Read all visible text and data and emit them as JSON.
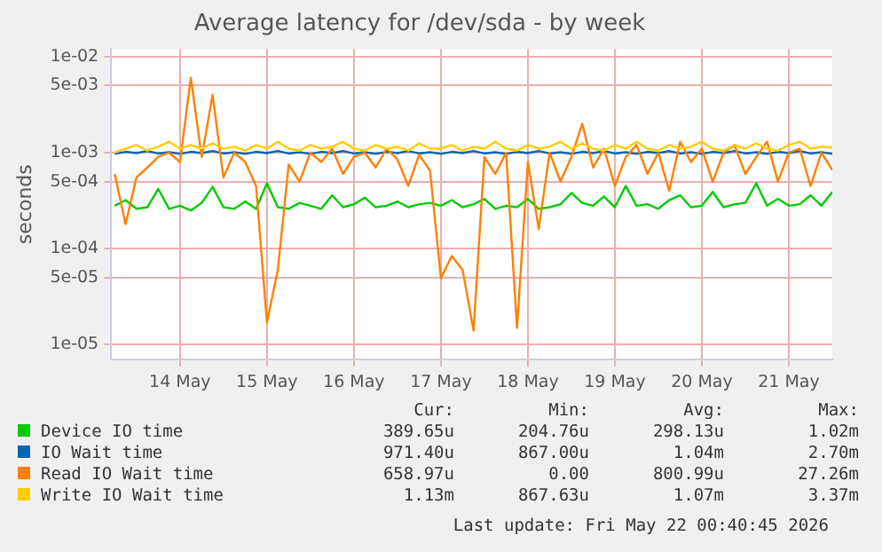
{
  "chart_data": {
    "type": "line",
    "title": "Average latency for /dev/sda - by week",
    "ylabel": "seconds",
    "x": [
      "2026-05-13T06:00",
      "2026-05-13T09:00",
      "2026-05-13T12:00",
      "2026-05-13T15:00",
      "2026-05-13T18:00",
      "2026-05-13T21:00",
      "2026-05-14T00:00",
      "2026-05-14T03:00",
      "2026-05-14T06:00",
      "2026-05-14T09:00",
      "2026-05-14T12:00",
      "2026-05-14T15:00",
      "2026-05-14T18:00",
      "2026-05-14T21:00",
      "2026-05-15T00:00",
      "2026-05-15T03:00",
      "2026-05-15T06:00",
      "2026-05-15T09:00",
      "2026-05-15T12:00",
      "2026-05-15T15:00",
      "2026-05-15T18:00",
      "2026-05-15T21:00",
      "2026-05-16T00:00",
      "2026-05-16T03:00",
      "2026-05-16T06:00",
      "2026-05-16T09:00",
      "2026-05-16T12:00",
      "2026-05-16T15:00",
      "2026-05-16T18:00",
      "2026-05-16T21:00",
      "2026-05-17T00:00",
      "2026-05-17T03:00",
      "2026-05-17T06:00",
      "2026-05-17T09:00",
      "2026-05-17T12:00",
      "2026-05-17T15:00",
      "2026-05-17T18:00",
      "2026-05-17T21:00",
      "2026-05-18T00:00",
      "2026-05-18T03:00",
      "2026-05-18T06:00",
      "2026-05-18T09:00",
      "2026-05-18T12:00",
      "2026-05-18T15:00",
      "2026-05-18T18:00",
      "2026-05-18T21:00",
      "2026-05-19T00:00",
      "2026-05-19T03:00",
      "2026-05-19T06:00",
      "2026-05-19T09:00",
      "2026-05-19T12:00",
      "2026-05-19T15:00",
      "2026-05-19T18:00",
      "2026-05-19T21:00",
      "2026-05-20T00:00",
      "2026-05-20T03:00",
      "2026-05-20T06:00",
      "2026-05-20T09:00",
      "2026-05-20T12:00",
      "2026-05-20T15:00",
      "2026-05-20T18:00",
      "2026-05-20T21:00",
      "2026-05-21T00:00",
      "2026-05-21T03:00",
      "2026-05-21T06:00",
      "2026-05-21T09:00",
      "2026-05-21T12:00"
    ],
    "series": [
      {
        "name": "Device IO time",
        "color": "#00cc00",
        "values": [
          0.00028,
          0.00032,
          0.00026,
          0.00027,
          0.00042,
          0.00026,
          0.00028,
          0.00025,
          0.0003,
          0.00044,
          0.00027,
          0.00026,
          0.00031,
          0.00026,
          0.00048,
          0.00027,
          0.00026,
          0.0003,
          0.00028,
          0.00026,
          0.00036,
          0.00027,
          0.00029,
          0.00034,
          0.00027,
          0.00028,
          0.00031,
          0.00027,
          0.00029,
          0.0003,
          0.00028,
          0.00032,
          0.00027,
          0.00029,
          0.00033,
          0.00026,
          0.00028,
          0.00027,
          0.00033,
          0.00026,
          0.00027,
          0.00029,
          0.00038,
          0.0003,
          0.00028,
          0.00035,
          0.00027,
          0.00045,
          0.00028,
          0.00029,
          0.00026,
          0.00032,
          0.00036,
          0.00027,
          0.00028,
          0.00039,
          0.00027,
          0.00029,
          0.0003,
          0.00048,
          0.00028,
          0.00033,
          0.00028,
          0.00029,
          0.00036,
          0.00028,
          0.00039
        ]
      },
      {
        "name": "IO Wait time",
        "color": "#0066b3",
        "values": [
          0.00097,
          0.00102,
          0.00099,
          0.00104,
          0.00098,
          0.00101,
          0.00097,
          0.00102,
          0.00099,
          0.00104,
          0.00098,
          0.00101,
          0.00097,
          0.00102,
          0.00099,
          0.00104,
          0.00098,
          0.00101,
          0.00097,
          0.00102,
          0.00099,
          0.00104,
          0.00098,
          0.00101,
          0.00097,
          0.00102,
          0.00099,
          0.00104,
          0.00098,
          0.00101,
          0.00097,
          0.00102,
          0.00099,
          0.00104,
          0.00098,
          0.00101,
          0.00097,
          0.00102,
          0.00099,
          0.00104,
          0.00098,
          0.00101,
          0.00097,
          0.00102,
          0.00099,
          0.00104,
          0.00098,
          0.00101,
          0.00097,
          0.00102,
          0.00099,
          0.00104,
          0.00098,
          0.00101,
          0.00097,
          0.00102,
          0.00099,
          0.00104,
          0.00098,
          0.00101,
          0.00097,
          0.00102,
          0.00099,
          0.00104,
          0.00098,
          0.00101,
          0.00097
        ]
      },
      {
        "name": "Read IO Wait time",
        "color": "#ff8000",
        "values": [
          0.0006,
          0.00018,
          0.00055,
          0.0007,
          0.0009,
          0.001,
          0.0008,
          0.006,
          0.0009,
          0.004,
          0.00055,
          0.001,
          0.0008,
          0.00045,
          1.7e-05,
          6e-05,
          0.00075,
          0.0005,
          0.001,
          0.0008,
          0.0011,
          0.0006,
          0.0009,
          0.001,
          0.0007,
          0.0011,
          0.00085,
          0.00045,
          0.00095,
          0.00065,
          4.9e-05,
          8.4e-05,
          6e-05,
          1.4e-05,
          0.0009,
          0.0006,
          0.001,
          1.5e-05,
          0.0008,
          0.00016,
          0.001,
          0.0005,
          0.0009,
          0.002,
          0.0007,
          0.0011,
          0.00045,
          0.0009,
          0.0012,
          0.0006,
          0.001,
          0.0004,
          0.0013,
          0.0008,
          0.0011,
          0.0005,
          0.001,
          0.0012,
          0.0006,
          0.0009,
          0.0013,
          0.0005,
          0.001,
          0.0011,
          0.00045,
          0.001,
          0.00066
        ]
      },
      {
        "name": "Write IO Wait time",
        "color": "#ffcc00",
        "values": [
          0.001,
          0.0011,
          0.0012,
          0.00105,
          0.00115,
          0.0013,
          0.0011,
          0.0012,
          0.0011,
          0.00125,
          0.0011,
          0.00115,
          0.00105,
          0.0012,
          0.0011,
          0.0013,
          0.0011,
          0.00105,
          0.0012,
          0.0011,
          0.00115,
          0.0013,
          0.0011,
          0.00105,
          0.0012,
          0.0011,
          0.00115,
          0.00105,
          0.00125,
          0.0011,
          0.0011,
          0.0012,
          0.00105,
          0.00115,
          0.0011,
          0.0013,
          0.0011,
          0.00105,
          0.0012,
          0.0011,
          0.00115,
          0.0013,
          0.0011,
          0.00125,
          0.0011,
          0.00105,
          0.0012,
          0.0011,
          0.0013,
          0.0011,
          0.00105,
          0.0012,
          0.0011,
          0.00115,
          0.0013,
          0.0011,
          0.00105,
          0.0012,
          0.0011,
          0.00125,
          0.0011,
          0.00105,
          0.0012,
          0.0013,
          0.0011,
          0.00115,
          0.00113
        ]
      }
    ],
    "xlim": [
      "2026-05-13T05:00",
      "2026-05-21T12:00"
    ],
    "xticks": [
      {
        "value": "2026-05-14",
        "label": "14 May"
      },
      {
        "value": "2026-05-15",
        "label": "15 May"
      },
      {
        "value": "2026-05-16",
        "label": "16 May"
      },
      {
        "value": "2026-05-17",
        "label": "17 May"
      },
      {
        "value": "2026-05-18",
        "label": "18 May"
      },
      {
        "value": "2026-05-19",
        "label": "19 May"
      },
      {
        "value": "2026-05-20",
        "label": "20 May"
      },
      {
        "value": "2026-05-21",
        "label": "21 May"
      }
    ],
    "ylim": [
      7e-06,
      0.012
    ],
    "yticks": [
      {
        "value": 1e-05,
        "label": "1e-05"
      },
      {
        "value": 5e-05,
        "label": "5e-05"
      },
      {
        "value": 0.0001,
        "label": "1e-04"
      },
      {
        "value": 0.0005,
        "label": "5e-04"
      },
      {
        "value": 0.001,
        "label": "1e-03"
      },
      {
        "value": 0.005,
        "label": "5e-03"
      },
      {
        "value": 0.01,
        "label": "1e-02"
      }
    ],
    "log": true,
    "grid": true,
    "legend": "bottom",
    "marker": "none",
    "line_style": "solid",
    "annotations": [
      "Cur:",
      "Min:",
      "Avg:",
      "Max:",
      "389.65u",
      "204.76u",
      "298.13u",
      "1.02m",
      "971.40u",
      "867.00u",
      "1.04m",
      "2.70m",
      "658.97u",
      "0.00",
      "800.99u",
      "27.26m",
      "1.13m",
      "867.63u",
      "1.07m",
      "3.37m",
      "Last update: Fri May 22 00:40:45 2026"
    ]
  }
}
